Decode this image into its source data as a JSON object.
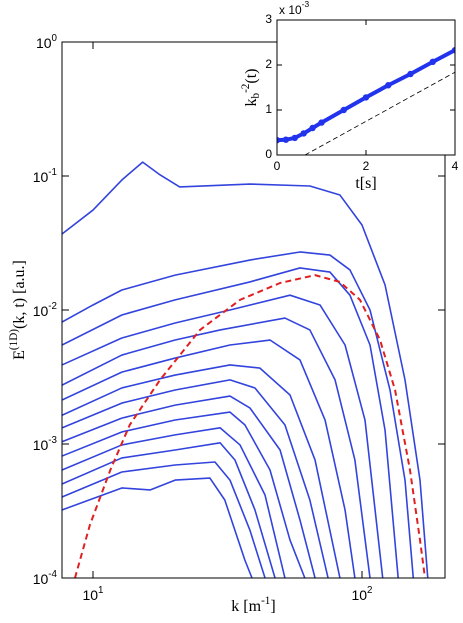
{
  "chart_data": [
    {
      "type": "line",
      "xlabel": "k [m^{-1}]",
      "ylabel": "E^{(1D)}(k, t) [a.u.]",
      "xscale": "log",
      "yscale": "log",
      "xlim": [
        7.67,
        203.5
      ],
      "ylim": [
        0.0001,
        1
      ],
      "xticks": [
        {
          "value": 10,
          "label": "10^1"
        },
        {
          "value": 100,
          "label": "10^2"
        }
      ],
      "yticks": [
        {
          "value": 0.0001,
          "label": "10^-4"
        },
        {
          "value": 0.001,
          "label": "10^-3"
        },
        {
          "value": 0.01,
          "label": "10^-2"
        },
        {
          "value": 0.1,
          "label": "10^-1"
        },
        {
          "value": 1,
          "label": "10^0"
        }
      ],
      "series": [
        {
          "color": "#3344dd",
          "x": [
            7.67,
            10,
            12.8,
            15.3,
            17.75,
            21.0,
            38.3,
            64.0,
            82.8,
            100,
            121.8,
            144.5,
            164.3,
            175.6
          ],
          "values": [
            0.0369,
            0.0557,
            0.0933,
            0.127,
            0.102,
            0.0828,
            0.0871,
            0.0842,
            0.0721,
            0.0431,
            0.0154,
            0.00301,
            0.000538,
            0.0001
          ]
        },
        {
          "color": "#3344dd",
          "x": [
            7.67,
            10,
            12.8,
            20.2,
            38.3,
            58.8,
            76.0,
            90.2,
            107.1,
            127.1,
            144.5,
            155.1
          ],
          "values": [
            0.00813,
            0.0109,
            0.0141,
            0.0182,
            0.0236,
            0.0271,
            0.0257,
            0.0199,
            0.01,
            0.00253,
            0.000538,
            0.0001
          ]
        },
        {
          "color": "#3344dd",
          "x": [
            7.67,
            12.8,
            20.2,
            38.3,
            58.8,
            76.0,
            90.2,
            107.1,
            121.8,
            136.3
          ],
          "values": [
            0.00548,
            0.00918,
            0.0119,
            0.0162,
            0.0206,
            0.0192,
            0.0129,
            0.00548,
            0.00127,
            0.0001
          ]
        },
        {
          "color": "#3344dd",
          "x": [
            7.67,
            12.8,
            20.2,
            32.3,
            54.0,
            69.8,
            86.5,
            102.6,
            119.4
          ],
          "values": [
            0.00389,
            0.00618,
            0.008,
            0.01,
            0.0129,
            0.0109,
            0.00548,
            0.00151,
            0.0001
          ]
        },
        {
          "color": "#3344dd",
          "x": [
            7.67,
            12.8,
            20.2,
            29.7,
            51.7,
            64.0,
            79.4,
            94.1,
            107.1
          ],
          "values": [
            0.00275,
            0.00461,
            0.00597,
            0.0071,
            0.00871,
            0.0071,
            0.00301,
            0.00076,
            0.0001
          ]
        },
        {
          "color": "#3344dd",
          "x": [
            7.67,
            12.8,
            20.2,
            32.3,
            45.5,
            58.8,
            72.9,
            86.5,
            94.1
          ],
          "values": [
            0.00213,
            0.00344,
            0.00438,
            0.00548,
            0.00597,
            0.00424,
            0.00151,
            0.000322,
            0.0001
          ]
        },
        {
          "color": "#3344dd",
          "x": [
            7.67,
            12.8,
            20.2,
            32.3,
            41.7,
            54.0,
            66.9,
            82.8
          ],
          "values": [
            0.00164,
            0.00262,
            0.00327,
            0.00389,
            0.00369,
            0.00232,
            0.00076,
            0.0001
          ]
        },
        {
          "color": "#3344dd",
          "x": [
            7.67,
            12.8,
            20.2,
            32.3,
            40.0,
            51.7,
            64.0,
            74.8
          ],
          "values": [
            0.00132,
            0.00202,
            0.00253,
            0.00301,
            0.00262,
            0.00139,
            0.000382,
            0.0001
          ]
        },
        {
          "color": "#3344dd",
          "x": [
            7.67,
            12.8,
            20.2,
            32.3,
            38.3,
            49.6,
            58.8,
            66.9
          ],
          "values": [
            0.00104,
            0.00156,
            0.00195,
            0.00228,
            0.00186,
            0.000902,
            0.000271,
            0.0001
          ]
        },
        {
          "color": "#3344dd",
          "x": [
            7.67,
            12.8,
            20.2,
            32.3,
            36.7,
            45.5,
            54.0,
            61.3
          ],
          "values": [
            0.000813,
            0.00123,
            0.00151,
            0.00173,
            0.00139,
            0.00064,
            0.000192,
            0.0001
          ]
        },
        {
          "color": "#3344dd",
          "x": [
            7.67,
            12.8,
            20.2,
            29.7,
            35.2,
            43.6,
            51.7
          ],
          "values": [
            0.00064,
            0.000984,
            0.00117,
            0.00132,
            0.000984,
            0.000416,
            0.0001
          ]
        },
        {
          "color": "#3344dd",
          "x": [
            7.67,
            12.8,
            20.2,
            29.7,
            33.7,
            40.0,
            47.5
          ],
          "values": [
            0.000503,
            0.000787,
            0.000902,
            0.00102,
            0.00076,
            0.000322,
            0.0001
          ]
        },
        {
          "color": "#3344dd",
          "x": [
            7.67,
            12.8,
            20.2,
            28.4,
            32.3,
            38.3,
            43.6
          ],
          "values": [
            0.000402,
            0.000618,
            0.000697,
            0.000734,
            0.000538,
            0.000228,
            0.0001
          ]
        },
        {
          "color": "#3344dd",
          "x": [
            7.67,
            12.8,
            16.3,
            20.2,
            27.2,
            30.9,
            36.7,
            39.0
          ],
          "values": [
            0.000322,
            0.00047,
            0.000454,
            0.000538,
            0.000557,
            0.000382,
            0.000136,
            0.0001
          ]
        },
        {
          "color": "#e02020",
          "dashed": true,
          "x": [
            8.57,
            9.74,
            11.6,
            13.7,
            17.75,
            25.0,
            35.2,
            49.6,
            66.9,
            82.8,
            98.3,
            116.7,
            132.7,
            150.8,
            164.3,
            171.5
          ],
          "values": [
            0.0001,
            0.000249,
            0.00064,
            0.00139,
            0.00301,
            0.0071,
            0.0119,
            0.0159,
            0.0182,
            0.0162,
            0.0119,
            0.00597,
            0.00253,
            0.00064,
            0.000192,
            0.0001
          ]
        }
      ]
    },
    {
      "type": "line",
      "xlabel": "t[s]",
      "ylabel": "k_b^{-2}(t)",
      "multiplier": "x 10^-3",
      "xlim": [
        0,
        4
      ],
      "ylim": [
        0,
        3
      ],
      "xticks": [
        0,
        2,
        4
      ],
      "yticks": [
        0,
        1,
        2,
        3
      ],
      "series": [
        {
          "color": "#2233ee",
          "marker": true,
          "x": [
            0,
            0.2,
            0.4,
            0.6,
            0.8,
            1.0,
            1.5,
            2.0,
            2.5,
            3.0,
            3.5,
            4.0
          ],
          "values": [
            0.33,
            0.34,
            0.38,
            0.48,
            0.6,
            0.72,
            1.0,
            1.28,
            1.55,
            1.8,
            2.07,
            2.33
          ]
        },
        {
          "color": "#000000",
          "dashed": true,
          "x": [
            0.63,
            4
          ],
          "values": [
            0,
            1.84
          ]
        }
      ]
    }
  ]
}
